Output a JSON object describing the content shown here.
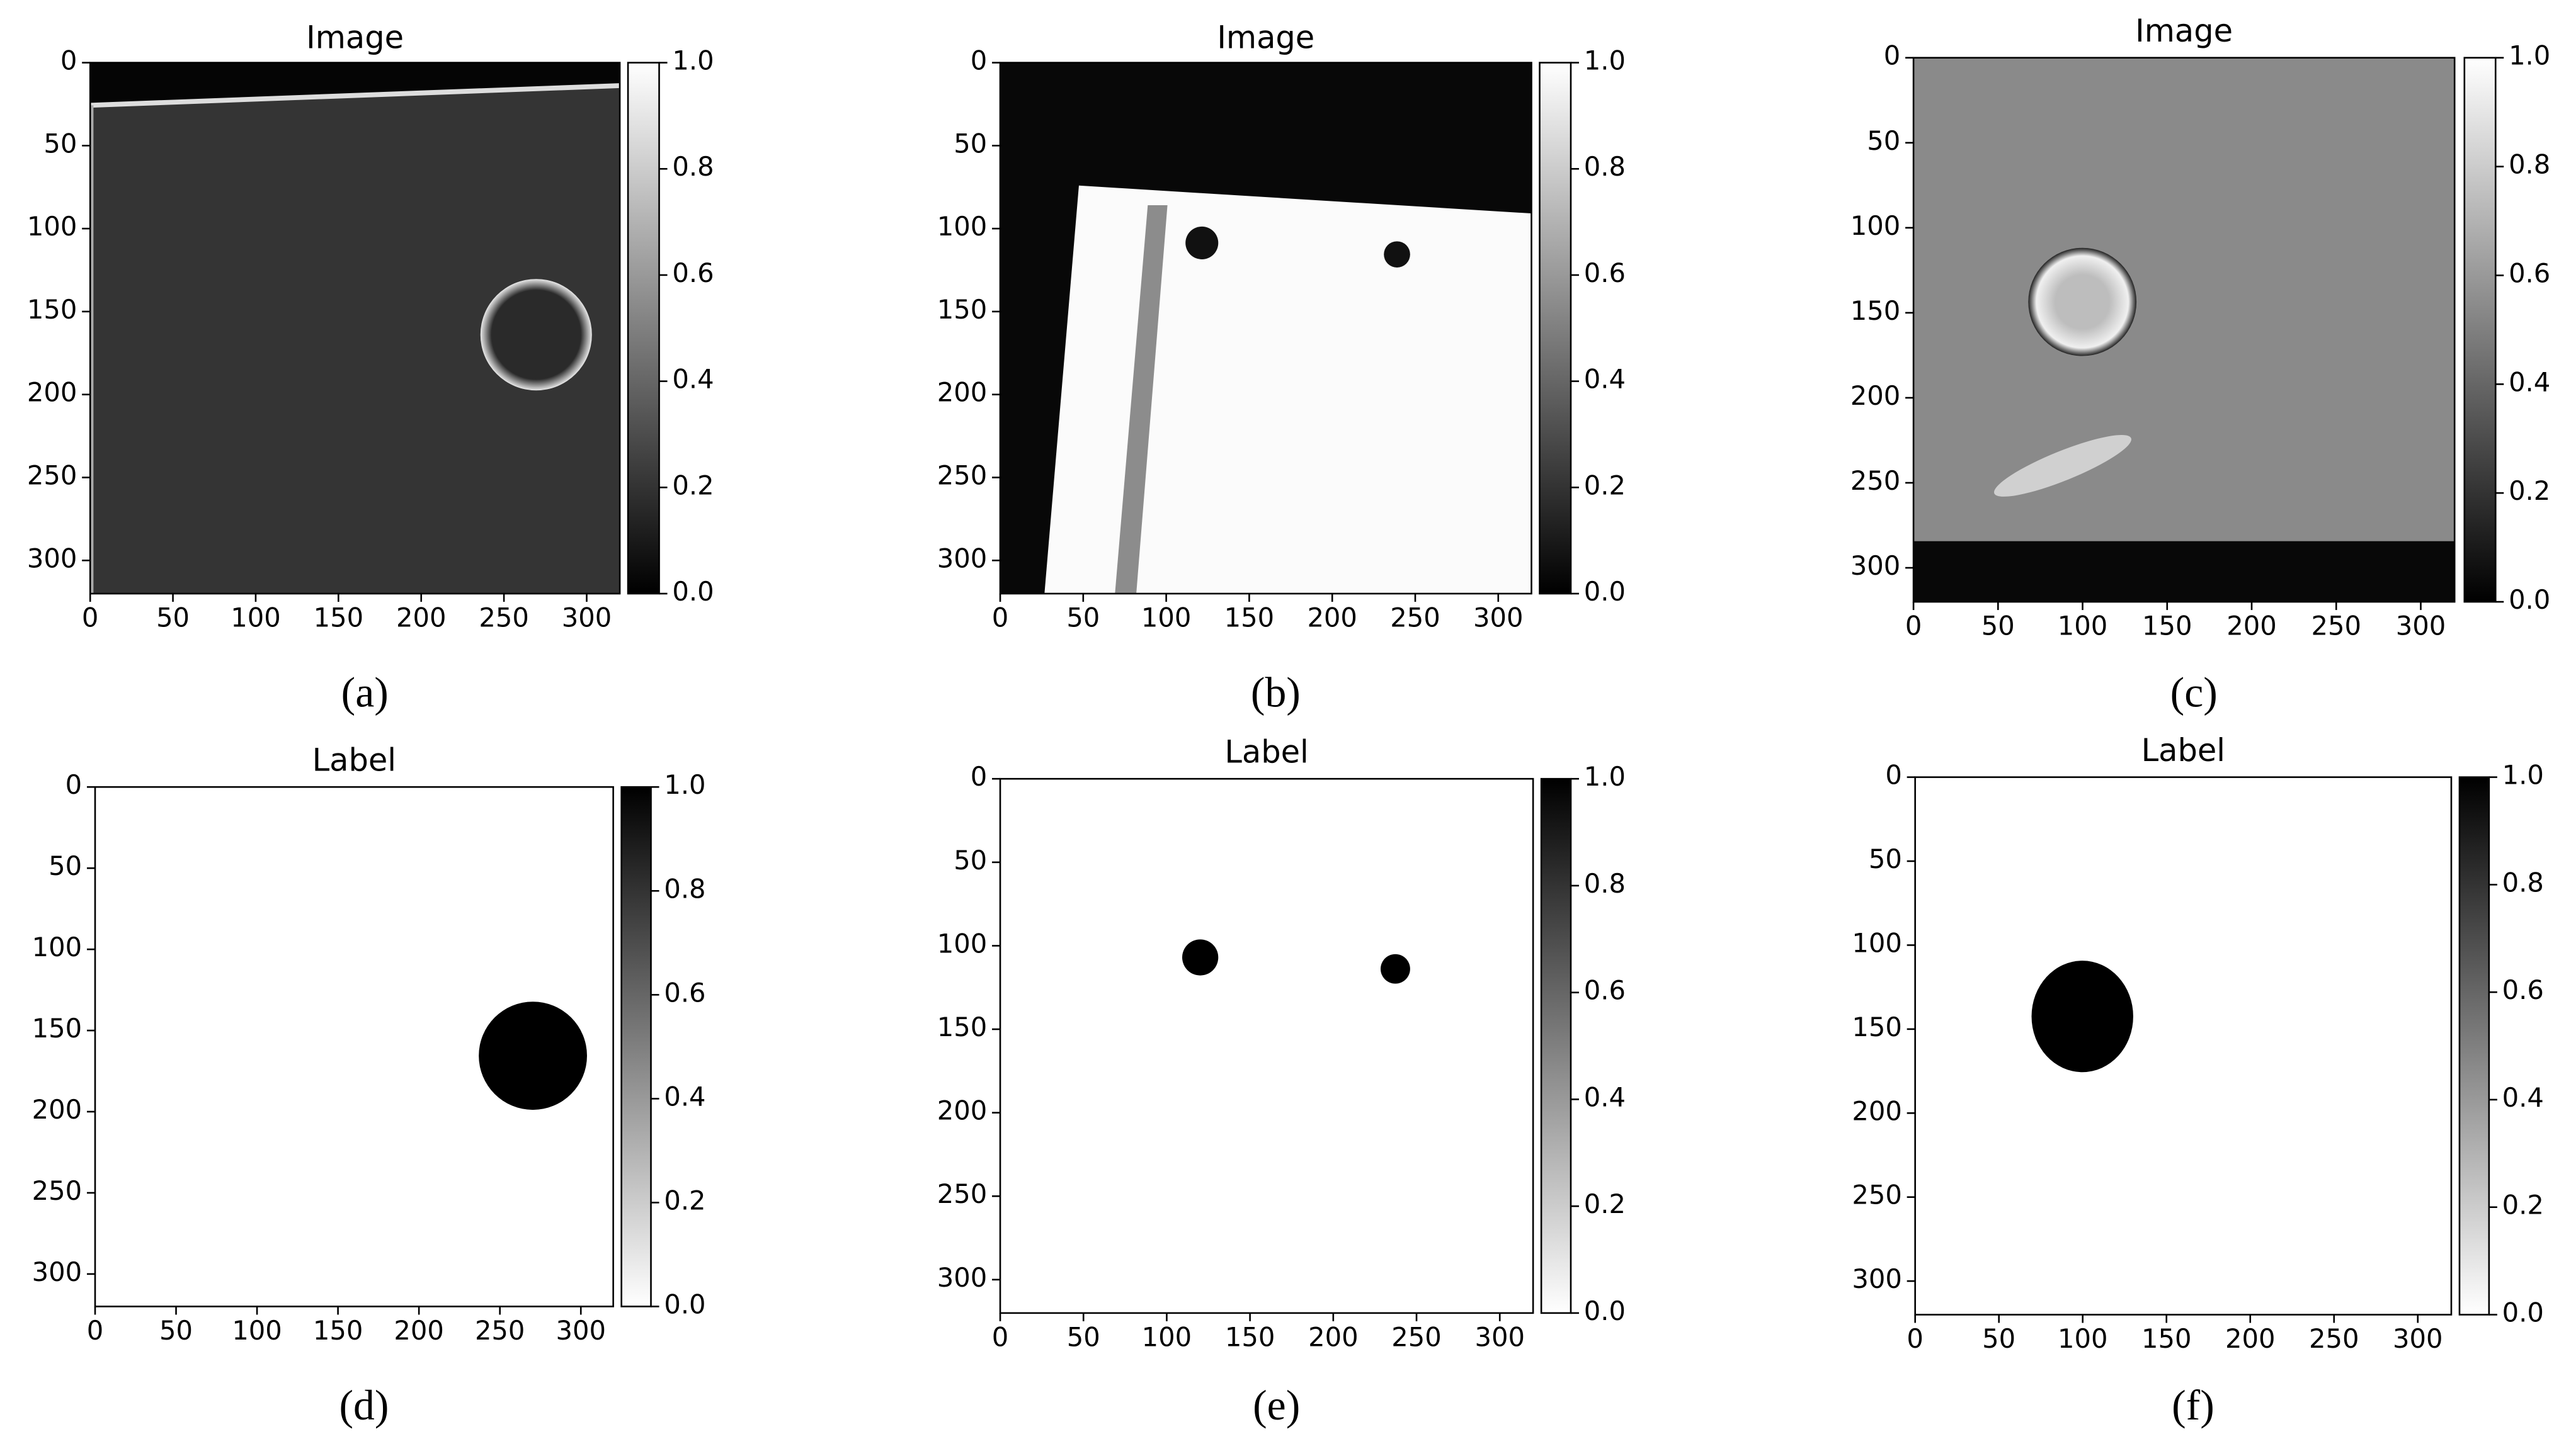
{
  "chart_data": [
    {
      "type": "image",
      "title": "Image",
      "caption": "(a)",
      "xlim": [
        0,
        320
      ],
      "ylim": [
        320,
        0
      ],
      "xticks": [
        0,
        50,
        100,
        150,
        200,
        250,
        300
      ],
      "yticks": [
        0,
        50,
        100,
        150,
        200,
        250,
        300
      ],
      "colorbar": {
        "colormap": "gray",
        "clim": [
          0,
          1
        ],
        "ticks": [
          {
            "value": 0,
            "label": "0.0"
          },
          0.2,
          0.4,
          0.6,
          0.8,
          {
            "value": 1,
            "label": "1.0"
          }
        ]
      }
    },
    {
      "type": "image",
      "title": "Image",
      "caption": "(b)",
      "xlim": [
        0,
        320
      ],
      "ylim": [
        320,
        0
      ],
      "xticks": [
        0,
        50,
        100,
        150,
        200,
        250,
        300
      ],
      "yticks": [
        0,
        50,
        100,
        150,
        200,
        250,
        300
      ],
      "colorbar": {
        "colormap": "gray",
        "clim": [
          0,
          1
        ],
        "ticks": [
          {
            "value": 0,
            "label": "0.0"
          },
          0.2,
          0.4,
          0.6,
          0.8,
          {
            "value": 1,
            "label": "1.0"
          }
        ]
      }
    },
    {
      "type": "image",
      "title": "Image",
      "caption": "(c)",
      "xlim": [
        0,
        320
      ],
      "ylim": [
        320,
        0
      ],
      "xticks": [
        0,
        50,
        100,
        150,
        200,
        250,
        300
      ],
      "yticks": [
        0,
        50,
        100,
        150,
        200,
        250,
        300
      ],
      "colorbar": {
        "colormap": "gray",
        "clim": [
          0,
          1
        ],
        "ticks": [
          {
            "value": 0,
            "label": "0.0"
          },
          0.2,
          0.4,
          0.6,
          0.8,
          {
            "value": 1,
            "label": "1.0"
          }
        ]
      }
    },
    {
      "type": "image",
      "title": "Label",
      "caption": "(d)",
      "xlim": [
        0,
        320
      ],
      "ylim": [
        320,
        0
      ],
      "xticks": [
        0,
        50,
        100,
        150,
        200,
        250,
        300
      ],
      "yticks": [
        0,
        50,
        100,
        150,
        200,
        250,
        300
      ],
      "colorbar": {
        "colormap": "gray_r",
        "clim": [
          0,
          1
        ],
        "ticks": [
          {
            "value": 0,
            "label": "0.0"
          },
          0.2,
          0.4,
          0.6,
          0.8,
          {
            "value": 1,
            "label": "1.0"
          }
        ]
      }
    },
    {
      "type": "image",
      "title": "Label",
      "caption": "(e)",
      "xlim": [
        0,
        320
      ],
      "ylim": [
        320,
        0
      ],
      "xticks": [
        0,
        50,
        100,
        150,
        200,
        250,
        300
      ],
      "yticks": [
        0,
        50,
        100,
        150,
        200,
        250,
        300
      ],
      "colorbar": {
        "colormap": "gray_r",
        "clim": [
          0,
          1
        ],
        "ticks": [
          {
            "value": 0,
            "label": "0.0"
          },
          0.2,
          0.4,
          0.6,
          0.8,
          {
            "value": 1,
            "label": "1.0"
          }
        ]
      }
    },
    {
      "type": "image",
      "title": "Label",
      "caption": "(f)",
      "xlim": [
        0,
        320
      ],
      "ylim": [
        320,
        0
      ],
      "xticks": [
        0,
        50,
        100,
        150,
        200,
        250,
        300
      ],
      "yticks": [
        0,
        50,
        100,
        150,
        200,
        250,
        300
      ],
      "colorbar": {
        "colormap": "gray_r",
        "clim": [
          0,
          1
        ],
        "ticks": [
          {
            "value": 0,
            "label": "0.0"
          },
          0.2,
          0.4,
          0.6,
          0.8,
          {
            "value": 1,
            "label": "1.0"
          }
        ]
      }
    }
  ]
}
